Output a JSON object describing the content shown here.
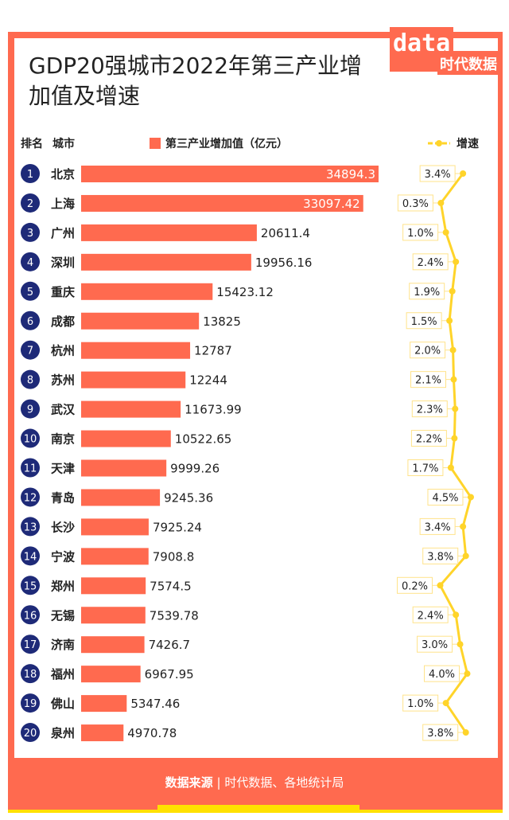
{
  "title": "GDP20强城市2022年第三产业增加值及增速",
  "logo": "data 时代数据",
  "headers": {
    "rank": "排名",
    "city": "城市",
    "legend_bar": "第三产业增加值（亿元）",
    "legend_line": "增速"
  },
  "footer": {
    "label": "数据来源",
    "sep": "|",
    "source": "时代数据、各地统计局"
  },
  "colors": {
    "bar": "#FF6A4F",
    "line": "#FFD42A",
    "rank": "#1E2A78"
  },
  "chart_data": {
    "type": "bar",
    "title": "GDP20强城市2022年第三产业增加值及增速",
    "categories": [
      "北京",
      "上海",
      "广州",
      "深圳",
      "重庆",
      "成都",
      "杭州",
      "苏州",
      "武汉",
      "南京",
      "天津",
      "青岛",
      "长沙",
      "宁波",
      "郑州",
      "无锡",
      "济南",
      "福州",
      "佛山",
      "泉州"
    ],
    "series": [
      {
        "name": "第三产业增加值（亿元）",
        "type": "bar",
        "values": [
          34894.3,
          33097.42,
          20611.4,
          19956.16,
          15423.12,
          13825,
          12787,
          12244,
          11673.99,
          10522.65,
          9999.26,
          9245.36,
          7925.24,
          7908.8,
          7574.5,
          7539.78,
          7426.7,
          6967.95,
          5347.46,
          4970.78
        ],
        "labels": [
          "34894.3",
          "33097.42",
          "20611.4",
          "19956.16",
          "15423.12",
          "13825",
          "12787",
          "12244",
          "11673.99",
          "10522.65",
          "9999.26",
          "9245.36",
          "7925.24",
          "7908.8",
          "7574.5",
          "7539.78",
          "7426.7",
          "6967.95",
          "5347.46",
          "4970.78"
        ]
      },
      {
        "name": "增速",
        "type": "line",
        "values": [
          3.4,
          0.3,
          1.0,
          2.4,
          1.9,
          1.5,
          2.0,
          2.1,
          2.3,
          2.2,
          1.7,
          4.5,
          3.4,
          3.8,
          0.2,
          2.4,
          3.0,
          4.0,
          1.0,
          3.8
        ],
        "labels": [
          "3.4%",
          "0.3%",
          "1.0%",
          "2.4%",
          "1.9%",
          "1.5%",
          "2.0%",
          "2.1%",
          "2.3%",
          "2.2%",
          "1.7%",
          "4.5%",
          "3.4%",
          "3.8%",
          "0.2%",
          "2.4%",
          "3.0%",
          "4.0%",
          "1.0%",
          "3.8%"
        ]
      }
    ],
    "ranks": [
      "1",
      "2",
      "3",
      "4",
      "5",
      "6",
      "7",
      "8",
      "9",
      "10",
      "11",
      "12",
      "13",
      "14",
      "15",
      "16",
      "17",
      "18",
      "19",
      "20"
    ],
    "legend": "top"
  }
}
